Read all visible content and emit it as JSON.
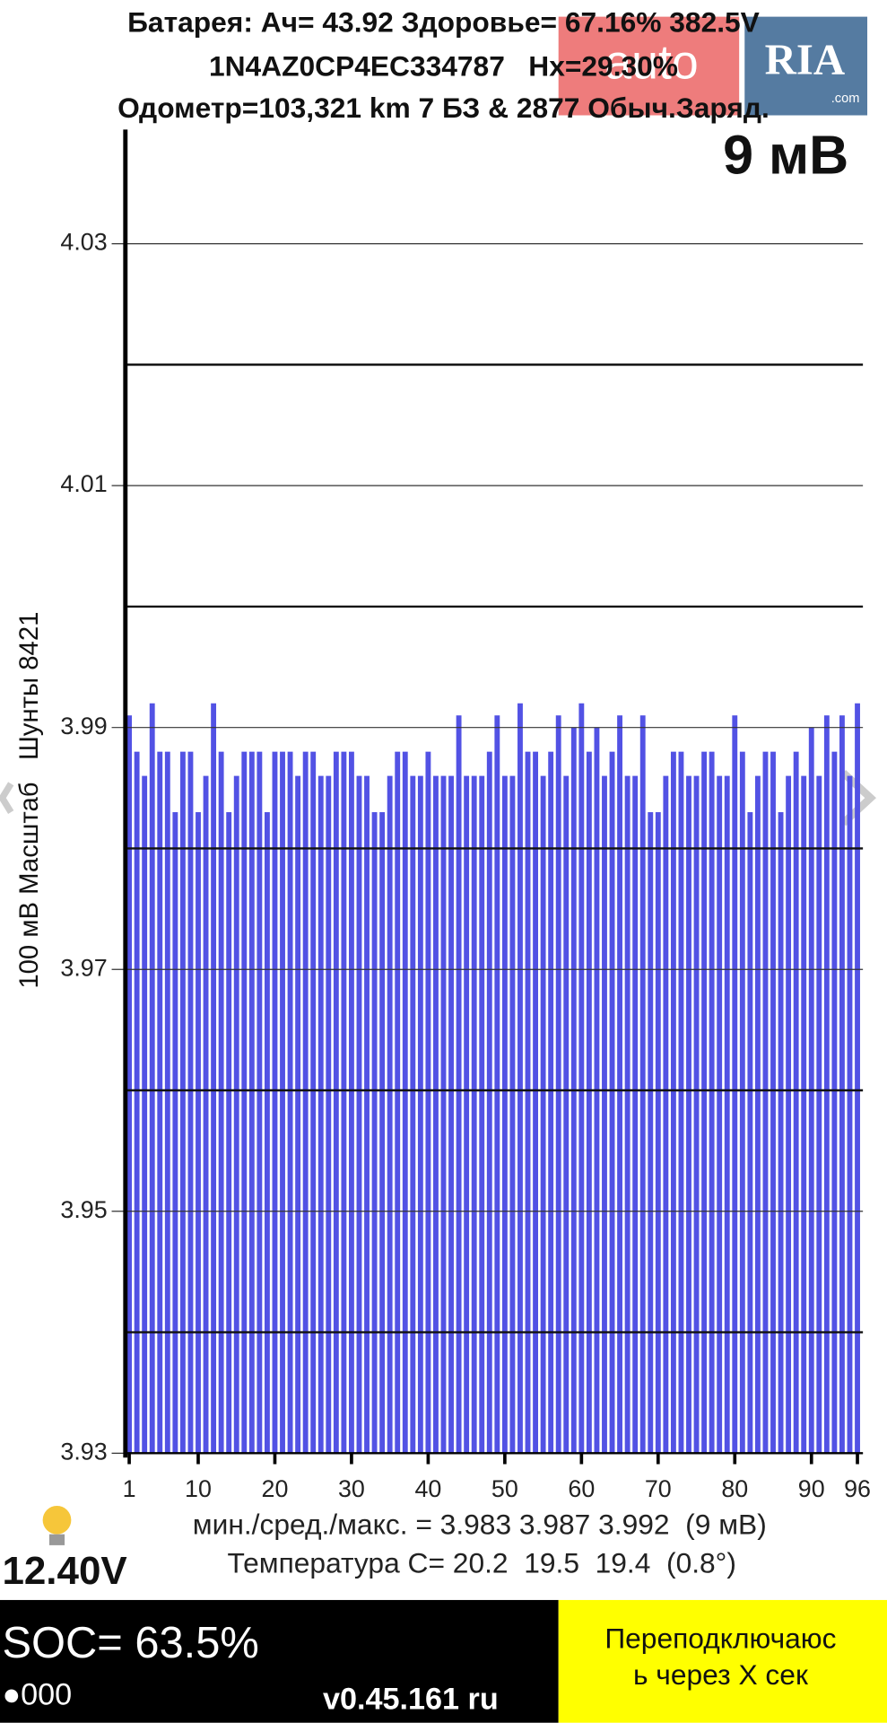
{
  "header": {
    "line1": "Батарея: Ач= 43.92 Здоровье= 67.16% 382.5V",
    "line2": "1N4AZ0CP4EC334787   Hx=29.30%",
    "line3": "Одометр=103,321 km 7 БЗ & 2877 Обыч.Заряд.",
    "spread": "9 мВ",
    "watermark": "auto",
    "watermark2": "RIA",
    "watermark3": ".com"
  },
  "chart_data": {
    "type": "bar",
    "y_label": "100 мВ Масштаб   Шунты 8421",
    "color": "#5252e4",
    "x": [
      1,
      2,
      3,
      4,
      5,
      6,
      7,
      8,
      9,
      10,
      11,
      12,
      13,
      14,
      15,
      16,
      17,
      18,
      19,
      20,
      21,
      22,
      23,
      24,
      25,
      26,
      27,
      28,
      29,
      30,
      31,
      32,
      33,
      34,
      35,
      36,
      37,
      38,
      39,
      40,
      41,
      42,
      43,
      44,
      45,
      46,
      47,
      48,
      49,
      50,
      51,
      52,
      53,
      54,
      55,
      56,
      57,
      58,
      59,
      60,
      61,
      62,
      63,
      64,
      65,
      66,
      67,
      68,
      69,
      70,
      71,
      72,
      73,
      74,
      75,
      76,
      77,
      78,
      79,
      80,
      81,
      82,
      83,
      84,
      85,
      86,
      87,
      88,
      89,
      90,
      91,
      92,
      93,
      94,
      95,
      96
    ],
    "values": [
      3.991,
      3.988,
      3.986,
      3.992,
      3.988,
      3.988,
      3.983,
      3.988,
      3.988,
      3.983,
      3.986,
      3.992,
      3.988,
      3.983,
      3.986,
      3.988,
      3.988,
      3.988,
      3.983,
      3.988,
      3.988,
      3.988,
      3.986,
      3.988,
      3.988,
      3.986,
      3.986,
      3.988,
      3.988,
      3.988,
      3.986,
      3.986,
      3.983,
      3.983,
      3.986,
      3.988,
      3.988,
      3.986,
      3.986,
      3.988,
      3.986,
      3.986,
      3.986,
      3.991,
      3.986,
      3.986,
      3.986,
      3.988,
      3.991,
      3.986,
      3.986,
      3.992,
      3.988,
      3.988,
      3.986,
      3.988,
      3.991,
      3.986,
      3.99,
      3.992,
      3.988,
      3.99,
      3.986,
      3.988,
      3.991,
      3.986,
      3.986,
      3.991,
      3.983,
      3.983,
      3.986,
      3.988,
      3.988,
      3.986,
      3.986,
      3.988,
      3.988,
      3.986,
      3.986,
      3.991,
      3.988,
      3.983,
      3.986,
      3.988,
      3.988,
      3.983,
      3.986,
      3.988,
      3.986,
      3.99,
      3.986,
      3.991,
      3.988,
      3.991,
      3.986,
      3.992
    ],
    "xlim": [
      0.5,
      96.5
    ],
    "xticks": [
      1,
      10,
      20,
      30,
      40,
      50,
      60,
      70,
      80,
      90,
      96
    ],
    "ylim": [
      3.93,
      4.035
    ],
    "yticks": [
      4.03,
      4.01,
      3.99,
      3.97,
      3.95,
      3.93
    ],
    "minor_yticks": [
      4.02,
      4.0,
      3.98,
      3.96,
      3.94
    ],
    "grid": true
  },
  "footer": {
    "stats": "мин./сред./макс. = 3.983 3.987 3.992  (9 мВ)",
    "temperature": "Температура C= 20.2  19.5  19.4  (0.8°)",
    "voltage12": "12.40V",
    "soc": "SOC= 63.5%",
    "dots": "●000",
    "version": "v0.45.161 ru",
    "reconnect1": "Переподключаюс",
    "reconnect2": "ь через X сек"
  }
}
